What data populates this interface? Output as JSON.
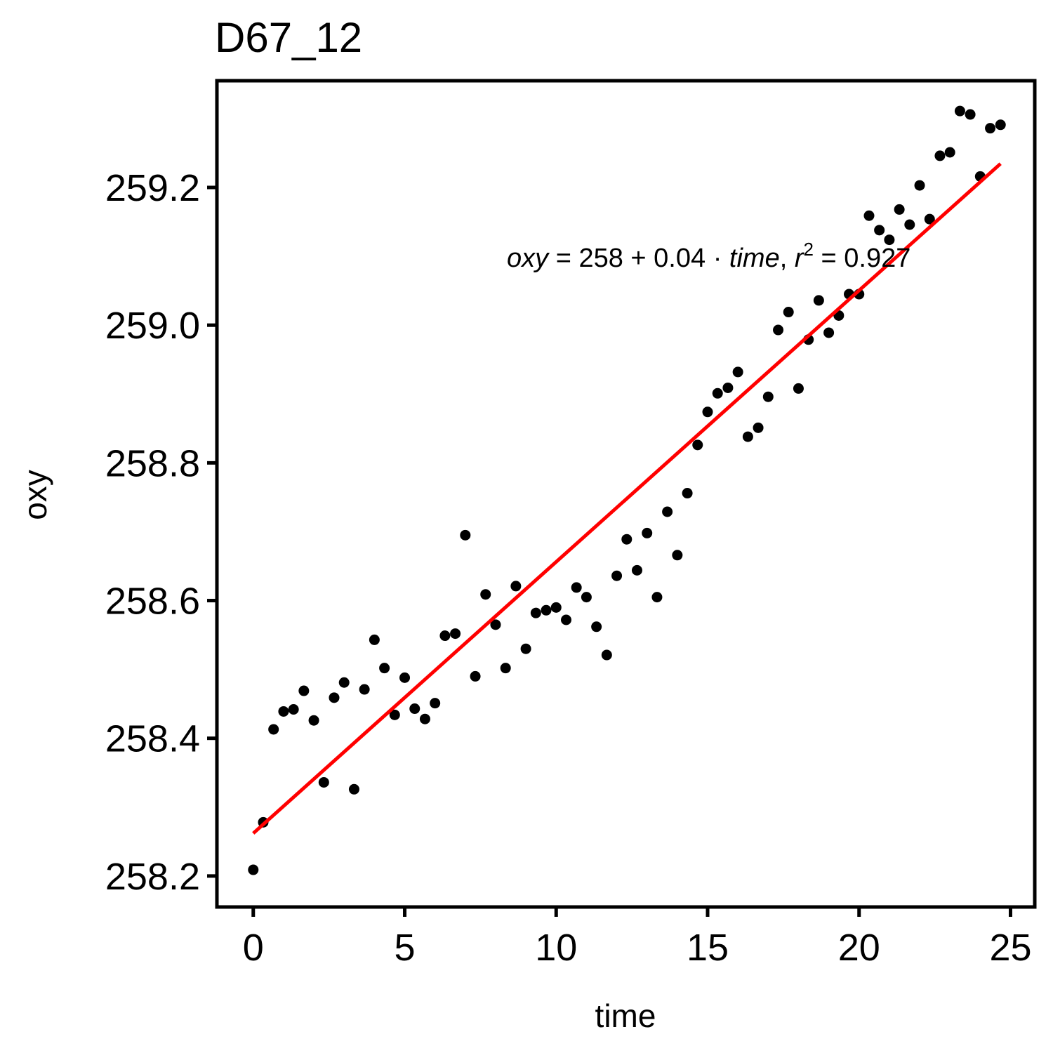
{
  "chart_data": {
    "type": "scatter",
    "title": "D67_12",
    "xlabel": "time",
    "ylabel": "oxy",
    "xlim": [
      -1.2,
      25.8
    ],
    "ylim": [
      258.155,
      259.355
    ],
    "xticks": [
      0,
      5,
      10,
      15,
      20,
      25
    ],
    "yticks": [
      258.2,
      258.4,
      258.6,
      258.8,
      259.0,
      259.2
    ],
    "ytick_labels": [
      "258.2",
      "258.4",
      "258.6",
      "258.8",
      "259.0",
      "259.2"
    ],
    "grid": false,
    "legend": "none",
    "point_color": "#000000",
    "fit_color": "#ff0000",
    "fit": {
      "x_range": [
        0,
        24.67
      ],
      "intercept": 258.262,
      "slope": 0.03942
    },
    "equation": {
      "var_y": "oxy",
      "eq": " = ",
      "intercept": "258",
      "plus": " + ",
      "slope": "0.04",
      "dot": " · ",
      "var_x": "time",
      "sep": ",  ",
      "r": "r",
      "sup": "2",
      "eq2": " = ",
      "r2": "0.927"
    },
    "points": [
      [
        0.0,
        258.209
      ],
      [
        0.33,
        258.278
      ],
      [
        0.67,
        258.413
      ],
      [
        1.0,
        258.439
      ],
      [
        1.33,
        258.442
      ],
      [
        1.67,
        258.469
      ],
      [
        2.0,
        258.426
      ],
      [
        2.33,
        258.336
      ],
      [
        2.67,
        258.459
      ],
      [
        3.0,
        258.481
      ],
      [
        3.33,
        258.326
      ],
      [
        3.67,
        258.471
      ],
      [
        4.0,
        258.543
      ],
      [
        4.33,
        258.502
      ],
      [
        4.67,
        258.434
      ],
      [
        5.0,
        258.488
      ],
      [
        5.33,
        258.443
      ],
      [
        5.67,
        258.428
      ],
      [
        6.0,
        258.451
      ],
      [
        6.33,
        258.549
      ],
      [
        6.67,
        258.552
      ],
      [
        7.0,
        258.695
      ],
      [
        7.33,
        258.49
      ],
      [
        7.67,
        258.609
      ],
      [
        8.0,
        258.565
      ],
      [
        8.33,
        258.502
      ],
      [
        8.67,
        258.621
      ],
      [
        9.0,
        258.53
      ],
      [
        9.33,
        258.582
      ],
      [
        9.67,
        258.586
      ],
      [
        10.0,
        258.59
      ],
      [
        10.33,
        258.572
      ],
      [
        10.67,
        258.619
      ],
      [
        11.0,
        258.605
      ],
      [
        11.33,
        258.562
      ],
      [
        11.67,
        258.521
      ],
      [
        12.0,
        258.636
      ],
      [
        12.33,
        258.689
      ],
      [
        12.67,
        258.644
      ],
      [
        13.0,
        258.698
      ],
      [
        13.33,
        258.605
      ],
      [
        13.67,
        258.729
      ],
      [
        14.0,
        258.666
      ],
      [
        14.33,
        258.756
      ],
      [
        14.67,
        258.826
      ],
      [
        15.0,
        258.874
      ],
      [
        15.33,
        258.901
      ],
      [
        15.67,
        258.909
      ],
      [
        16.0,
        258.932
      ],
      [
        16.33,
        258.838
      ],
      [
        16.67,
        258.851
      ],
      [
        17.0,
        258.896
      ],
      [
        17.33,
        258.993
      ],
      [
        17.67,
        259.019
      ],
      [
        18.0,
        258.908
      ],
      [
        18.33,
        258.979
      ],
      [
        18.67,
        259.036
      ],
      [
        19.0,
        258.989
      ],
      [
        19.33,
        259.014
      ],
      [
        19.67,
        259.045
      ],
      [
        20.0,
        259.045
      ],
      [
        20.33,
        259.159
      ],
      [
        20.67,
        259.138
      ],
      [
        21.0,
        259.124
      ],
      [
        21.33,
        259.168
      ],
      [
        21.67,
        259.146
      ],
      [
        22.0,
        259.203
      ],
      [
        22.33,
        259.154
      ],
      [
        22.67,
        259.246
      ],
      [
        23.0,
        259.251
      ],
      [
        23.33,
        259.311
      ],
      [
        23.67,
        259.306
      ],
      [
        24.0,
        259.216
      ],
      [
        24.33,
        259.286
      ],
      [
        24.67,
        259.291
      ]
    ]
  }
}
